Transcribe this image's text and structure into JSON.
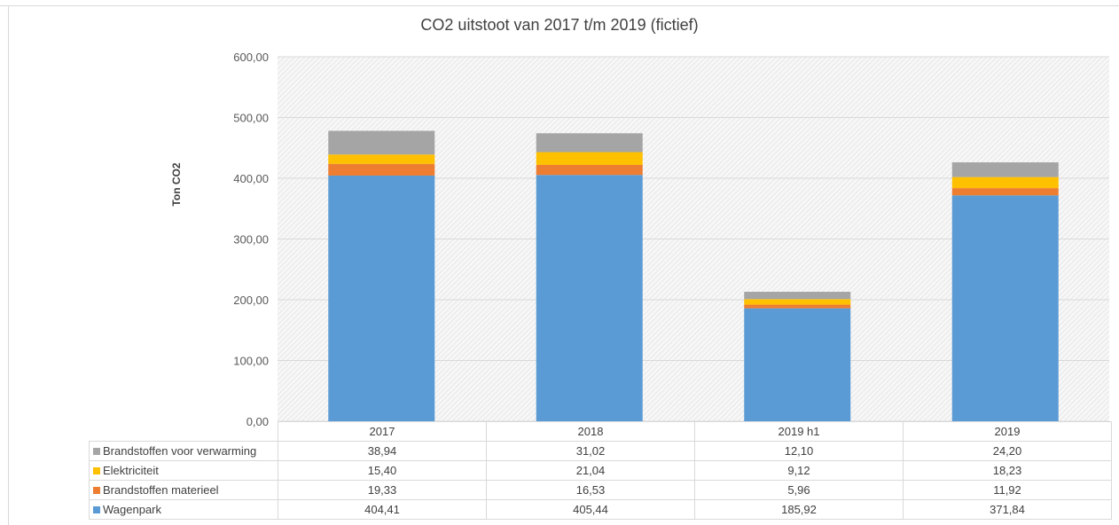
{
  "chart_data": {
    "type": "bar",
    "stacked": true,
    "title": "CO2 uitstoot van 2017 t/m 2019 (fictief)",
    "ylabel": "Ton CO2",
    "xlabel": "",
    "ylim": [
      0,
      600
    ],
    "ytick_values": [
      0,
      100,
      200,
      300,
      400,
      500,
      600
    ],
    "ytick_labels": [
      "0,00",
      "100,00",
      "200,00",
      "300,00",
      "400,00",
      "500,00",
      "600,00"
    ],
    "grid": true,
    "legend": "data-table",
    "categories": [
      "2017",
      "2018",
      "2019 h1",
      "2019"
    ],
    "series": [
      {
        "name": "Wagenpark",
        "color": "#5b9bd5",
        "values": [
          404.41,
          405.44,
          185.92,
          371.84
        ],
        "labels": [
          "404,41",
          "405,44",
          "185,92",
          "371,84"
        ]
      },
      {
        "name": "Brandstoffen materieel",
        "color": "#ed7d31",
        "values": [
          19.33,
          16.53,
          5.96,
          11.92
        ],
        "labels": [
          "19,33",
          "16,53",
          "5,96",
          "11,92"
        ]
      },
      {
        "name": "Elektriciteit",
        "color": "#ffc000",
        "values": [
          15.4,
          21.04,
          9.12,
          18.23
        ],
        "labels": [
          "15,40",
          "21,04",
          "9,12",
          "18,23"
        ]
      },
      {
        "name": "Brandstoffen voor verwarming",
        "color": "#a5a5a5",
        "values": [
          38.94,
          31.02,
          12.1,
          24.2
        ],
        "labels": [
          "38,94",
          "31,02",
          "12,10",
          "24,20"
        ]
      }
    ]
  }
}
